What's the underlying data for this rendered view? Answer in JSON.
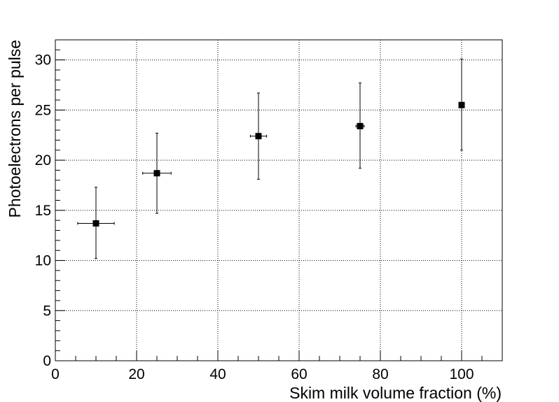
{
  "chart_data": {
    "type": "scatter",
    "xlabel": "Skim milk volume fraction (%)",
    "ylabel": "Photoelectrons per pulse",
    "xlim": [
      0,
      110
    ],
    "ylim": [
      0,
      32
    ],
    "x_ticks": [
      0,
      20,
      40,
      60,
      80,
      100
    ],
    "y_ticks": [
      0,
      5,
      10,
      15,
      20,
      25,
      30
    ],
    "x_ticks_labels": [
      "0",
      "20",
      "40",
      "60",
      "80",
      "100"
    ],
    "y_ticks_labels": [
      "0",
      "5",
      "10",
      "15",
      "20",
      "25",
      "30"
    ],
    "grid": true,
    "series": [
      {
        "marker": "square",
        "color": "#000000",
        "points": [
          {
            "x": 10,
            "y": 13.7,
            "xerr": 4.5,
            "yerr_low": 3.5,
            "yerr_high": 3.6
          },
          {
            "x": 25,
            "y": 18.7,
            "xerr": 3.5,
            "yerr_low": 4.0,
            "yerr_high": 4.0
          },
          {
            "x": 50,
            "y": 22.4,
            "xerr": 2.0,
            "yerr_low": 4.3,
            "yerr_high": 4.3
          },
          {
            "x": 75,
            "y": 23.4,
            "xerr": 1.0,
            "yerr_low": 4.2,
            "yerr_high": 4.3
          },
          {
            "x": 100,
            "y": 25.5,
            "xerr": 0.0,
            "yerr_low": 4.5,
            "yerr_high": 4.6
          }
        ]
      }
    ]
  }
}
